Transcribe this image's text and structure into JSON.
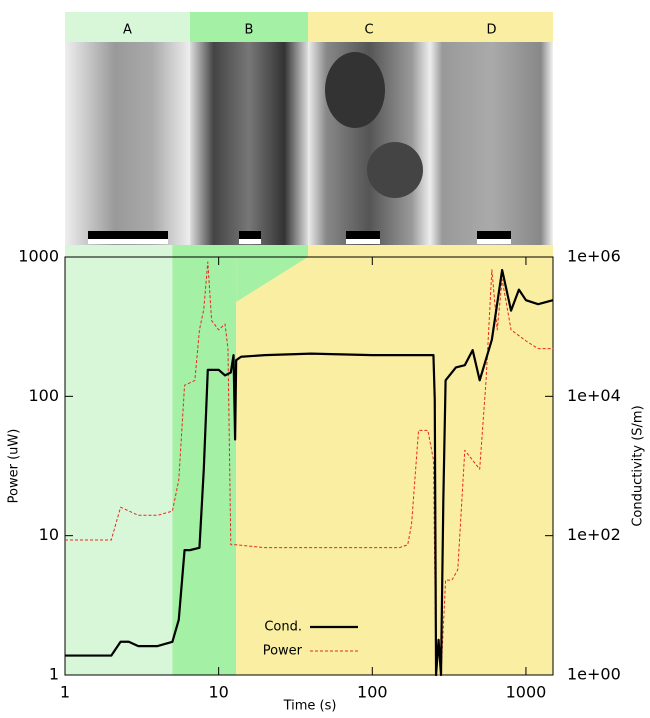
{
  "chart_data": {
    "type": "line",
    "panels": [
      {
        "label": "A",
        "color": "#d8f7d8"
      },
      {
        "label": "B",
        "color": "#a4f0a4"
      },
      {
        "label": "C",
        "color": "#f9eea2"
      },
      {
        "label": "D",
        "color": "#f9eea2"
      }
    ],
    "regions": [
      {
        "x": [
          1,
          5
        ],
        "color": "#d8f7d8"
      },
      {
        "x": [
          5,
          13
        ],
        "color": "#a4f0a4"
      },
      {
        "x": [
          13,
          1500
        ],
        "color": "#f9eea2"
      }
    ],
    "xlabel": "Time (s)",
    "ylabel": "Power (uW)",
    "y2label": "Conductivity (S/m)",
    "xscale": "log",
    "yscale": "log",
    "xlim": [
      1,
      1500
    ],
    "ylim": [
      1,
      1000
    ],
    "y2lim": [
      1,
      1000000
    ],
    "xticks": [
      1,
      10,
      100,
      1000
    ],
    "yticks": [
      1,
      10,
      100,
      1000
    ],
    "y2ticks": [
      {
        "value": 1,
        "label": "1e+00"
      },
      {
        "value": 100,
        "label": "1e+02"
      },
      {
        "value": 10000,
        "label": "1e+04"
      },
      {
        "value": 1000000,
        "label": "1e+06"
      }
    ],
    "series": [
      {
        "name": "Cond.",
        "color": "#000000",
        "axis": "y2",
        "dash": false,
        "x": [
          1,
          2,
          2.3,
          2.6,
          3,
          4,
          5,
          5.5,
          6,
          6.5,
          7.5,
          8,
          8.5,
          9.5,
          10,
          11,
          12,
          12.5,
          12.8,
          13,
          14,
          20,
          40,
          100,
          200,
          250,
          255,
          260,
          270,
          280,
          290,
          300,
          350,
          400,
          450,
          500,
          600,
          700,
          800,
          900,
          1000,
          1200,
          1500
        ],
        "values": [
          1.9,
          1.9,
          3.0,
          3.0,
          2.6,
          2.6,
          3.0,
          6.2,
          62,
          62,
          67,
          880,
          24000,
          24000,
          24000,
          20000,
          22000,
          39000,
          2400,
          33000,
          37000,
          39000,
          41000,
          39000,
          39000,
          39000,
          8900,
          1,
          3.2,
          1,
          330,
          17000,
          26000,
          28000,
          46000,
          17000,
          65000,
          650000,
          170000,
          340000,
          240000,
          210000,
          240000
        ]
      },
      {
        "name": "Power",
        "color": "#e8281e",
        "axis": "y",
        "dash": true,
        "x": [
          1,
          2,
          2.3,
          3,
          4,
          5,
          5.5,
          6,
          7,
          7.5,
          8,
          8.5,
          9,
          10,
          11,
          11.5,
          12,
          13,
          20,
          50,
          100,
          150,
          170,
          180,
          200,
          230,
          250,
          260,
          280,
          300,
          330,
          360,
          400,
          500,
          550,
          600,
          650,
          700,
          800,
          1000,
          1200,
          1500
        ],
        "values": [
          9.3,
          9.3,
          16,
          14,
          14,
          15,
          25,
          120,
          130,
          300,
          420,
          920,
          350,
          300,
          330,
          220,
          8.6,
          8.6,
          8.2,
          8.2,
          8.2,
          8.2,
          8.6,
          12,
          57,
          57,
          35,
          1,
          1,
          4.8,
          4.8,
          5.7,
          41,
          30,
          130,
          810,
          300,
          690,
          300,
          250,
          220,
          220
        ]
      }
    ]
  }
}
